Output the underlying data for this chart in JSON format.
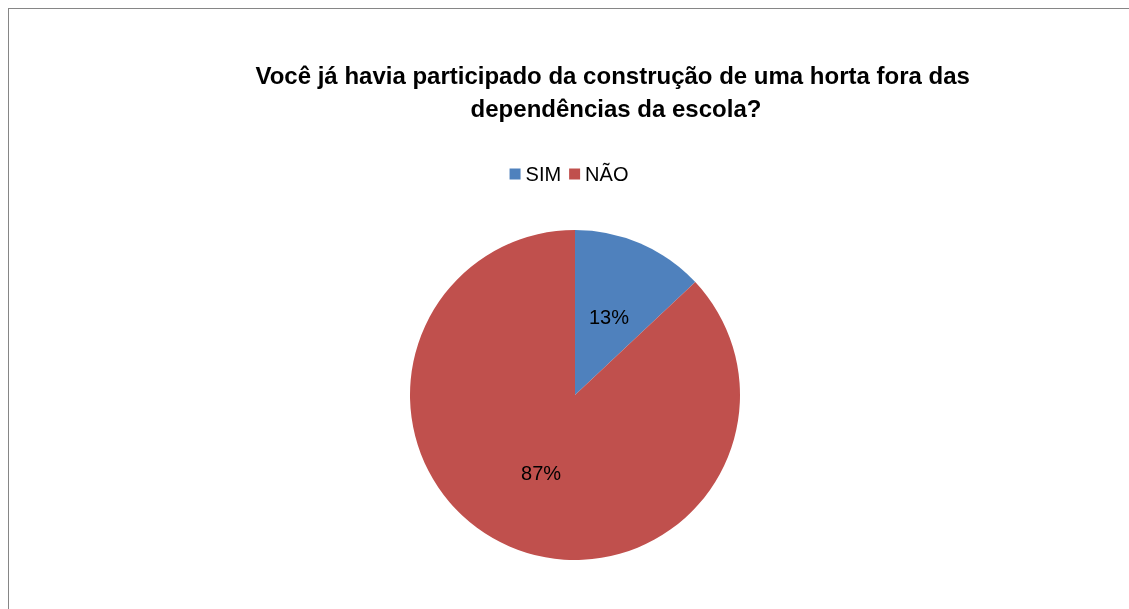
{
  "chart_data": {
    "type": "pie",
    "title": "Você já havia participado da construção de uma horta fora das dependências da escola?",
    "categories": [
      "SIM",
      "NÃO"
    ],
    "values": [
      13,
      87
    ],
    "colors": [
      "#4f81bd",
      "#c0504d"
    ],
    "value_labels": [
      "13%",
      "87%"
    ],
    "legend": "top"
  }
}
